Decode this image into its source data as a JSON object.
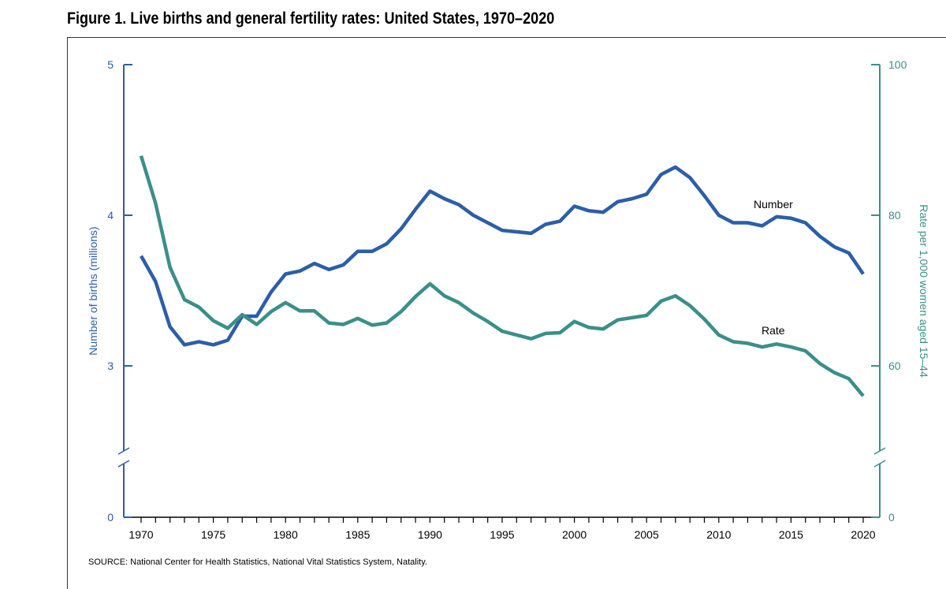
{
  "figure": {
    "title": "Figure 1. Live births and general fertility rates: United States, 1970–2020",
    "source": "SOURCE: National Center for Health Statistics, National Vital Statistics System, Natality."
  },
  "colors": {
    "number": "#2c5ea8",
    "rate": "#3b8f88",
    "axis_text": "#2c5ea8",
    "rate_axis_text": "#3b8f88"
  },
  "chart_data": {
    "type": "line",
    "title": "Figure 1. Live births and general fertility rates: United States, 1970–2020",
    "xlabel": "",
    "xlim": [
      1970,
      2020
    ],
    "x_ticks": [
      "1970",
      "1975",
      "1980",
      "1985",
      "1990",
      "1995",
      "2000",
      "2005",
      "2010",
      "2015",
      "2020"
    ],
    "y_left": {
      "label": "Number of births (millions)",
      "ticks": [
        "0",
        "3",
        "4",
        "5"
      ],
      "range": [
        0,
        5
      ],
      "axis_break": true
    },
    "y_right": {
      "label": "Rate per 1,000 women aged 15–44",
      "ticks": [
        "0",
        "60",
        "80",
        "100"
      ],
      "range": [
        0,
        100
      ],
      "axis_break": true
    },
    "x": [
      1970,
      1971,
      1972,
      1973,
      1974,
      1975,
      1976,
      1977,
      1978,
      1979,
      1980,
      1981,
      1982,
      1983,
      1984,
      1985,
      1986,
      1987,
      1988,
      1989,
      1990,
      1991,
      1992,
      1993,
      1994,
      1995,
      1996,
      1997,
      1998,
      1999,
      2000,
      2001,
      2002,
      2003,
      2004,
      2005,
      2006,
      2007,
      2008,
      2009,
      2010,
      2011,
      2012,
      2013,
      2014,
      2015,
      2016,
      2017,
      2018,
      2019,
      2020
    ],
    "series": [
      {
        "name": "Number",
        "axis": "left",
        "values": [
          3.73,
          3.56,
          3.26,
          3.14,
          3.16,
          3.14,
          3.17,
          3.33,
          3.33,
          3.49,
          3.61,
          3.63,
          3.68,
          3.64,
          3.67,
          3.76,
          3.76,
          3.81,
          3.91,
          4.04,
          4.16,
          4.11,
          4.07,
          4.0,
          3.95,
          3.9,
          3.89,
          3.88,
          3.94,
          3.96,
          4.06,
          4.03,
          4.02,
          4.09,
          4.11,
          4.14,
          4.27,
          4.32,
          4.25,
          4.13,
          4.0,
          3.95,
          3.95,
          3.93,
          3.99,
          3.98,
          3.95,
          3.86,
          3.79,
          3.75,
          3.61
        ]
      },
      {
        "name": "Rate",
        "axis": "right",
        "values": [
          87.9,
          81.6,
          73.1,
          68.8,
          67.8,
          66.0,
          65.0,
          66.8,
          65.5,
          67.2,
          68.4,
          67.3,
          67.3,
          65.7,
          65.5,
          66.3,
          65.4,
          65.7,
          67.2,
          69.2,
          70.9,
          69.3,
          68.4,
          67.0,
          65.9,
          64.6,
          64.1,
          63.6,
          64.3,
          64.4,
          65.9,
          65.1,
          64.9,
          66.1,
          66.4,
          66.7,
          68.6,
          69.3,
          68.0,
          66.2,
          64.1,
          63.2,
          63.0,
          62.5,
          62.9,
          62.5,
          62.0,
          60.3,
          59.1,
          58.3,
          56.0
        ]
      }
    ],
    "annotations": [
      "Number",
      "Rate"
    ],
    "legend": "none",
    "grid": false
  }
}
